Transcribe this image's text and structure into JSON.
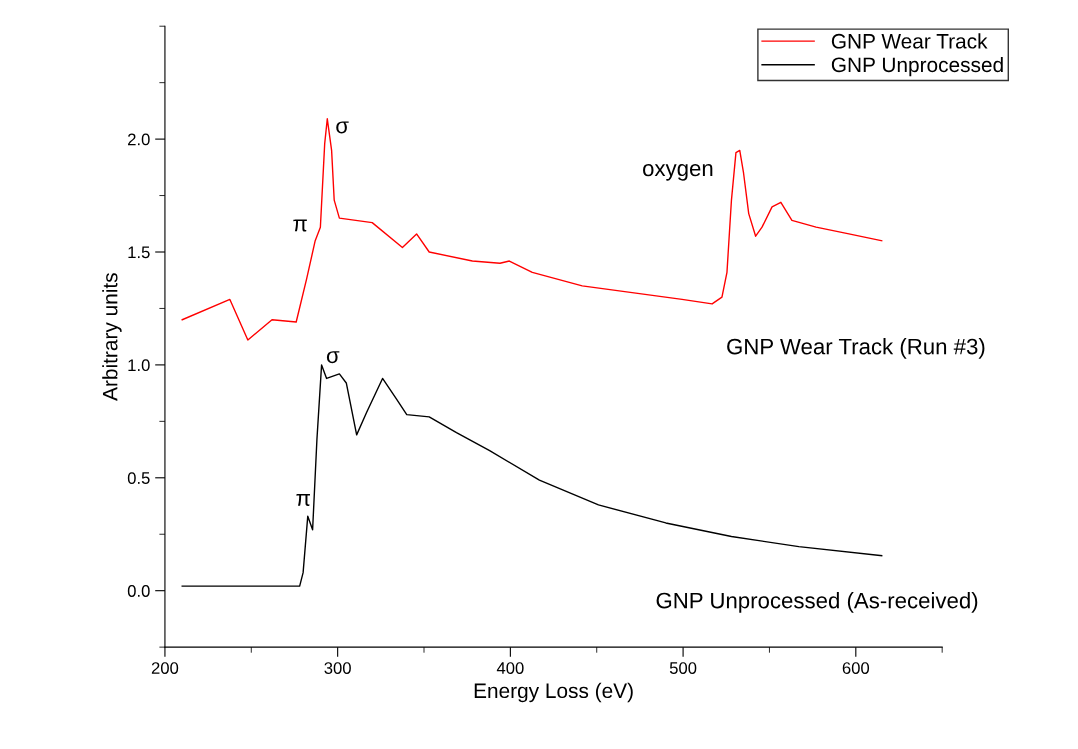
{
  "chart_data": {
    "type": "line",
    "xlabel": "Energy Loss (eV)",
    "ylabel": "Arbitrary units",
    "xlim": [
      200,
      650
    ],
    "xticks": [
      200,
      300,
      400,
      500,
      600
    ],
    "ylim": [
      -0.25,
      2.5
    ],
    "yticks": [
      {
        "value": 0,
        "label": "0.0"
      },
      0.5,
      {
        "value": 1,
        "label": "1.0"
      },
      1.5,
      {
        "value": 2,
        "label": "2.0"
      }
    ],
    "grid": false,
    "legend": "top right",
    "series": [
      {
        "name": "GNP Wear Track",
        "color": "#ff0000",
        "x": [
          210,
          237.6,
          248,
          262,
          276,
          282,
          287,
          290,
          292.5,
          294,
          296.5,
          298,
          301,
          320,
          337.5,
          345.7,
          353,
          378,
          394,
          399.4,
          412.7,
          441.6,
          470.5,
          499.4,
          516.8,
          522.5,
          525.4,
          528,
          530.6,
          532.8,
          535,
          538,
          542,
          545.7,
          551.5,
          556.6,
          563,
          577,
          596,
          615
        ],
        "values": [
          1.2,
          1.29,
          1.11,
          1.2,
          1.19,
          1.38,
          1.55,
          1.61,
          1.98,
          2.09,
          1.95,
          1.73,
          1.65,
          1.63,
          1.52,
          1.58,
          1.5,
          1.46,
          1.45,
          1.46,
          1.41,
          1.35,
          1.32,
          1.29,
          1.27,
          1.3,
          1.41,
          1.73,
          1.94,
          1.95,
          1.85,
          1.67,
          1.57,
          1.61,
          1.7,
          1.72,
          1.64,
          1.61,
          1.58,
          1.55
        ]
      },
      {
        "name": "GNP Unprocessed",
        "color": "#000000",
        "x": [
          210,
          278,
          280,
          282.7,
          285.5,
          288,
          290.7,
          293.6,
          301,
          305,
          311,
          316.8,
          326,
          334,
          340,
          353,
          368.8,
          388,
          416.8,
          451,
          490,
          528,
          567,
          615
        ],
        "values": [
          0.02,
          0.02,
          0.08,
          0.33,
          0.27,
          0.67,
          1.0,
          0.94,
          0.96,
          0.92,
          0.69,
          0.79,
          0.94,
          0.85,
          0.78,
          0.77,
          0.7,
          0.62,
          0.49,
          0.38,
          0.3,
          0.24,
          0.195,
          0.155
        ]
      }
    ],
    "annotations": [
      "π",
      "σ",
      "oxygen",
      "GNP Wear Track (Run #3)",
      "π",
      "σ",
      "GNP Unprocessed (As-received)"
    ]
  }
}
